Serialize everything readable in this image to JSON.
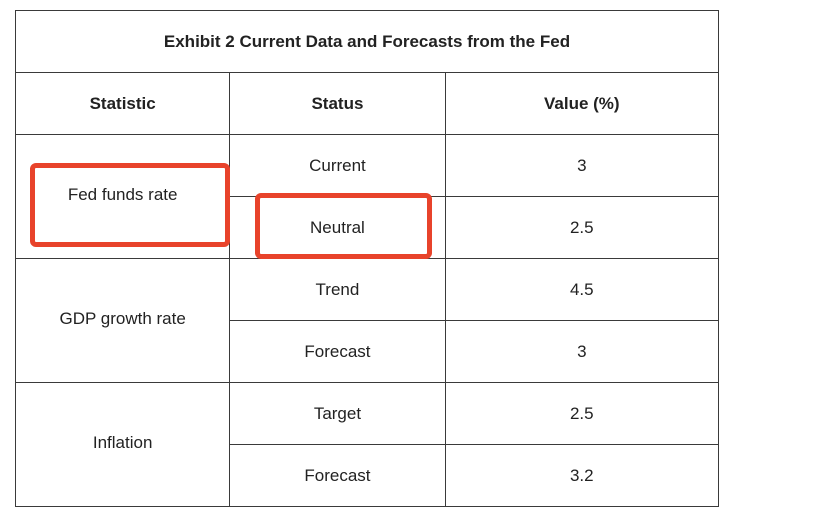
{
  "table": {
    "title": "Exhibit 2 Current Data and Forecasts from the Fed",
    "headers": [
      "Statistic",
      "Status",
      "Value (%)"
    ],
    "groups": [
      {
        "statistic": "Fed funds rate",
        "rows": [
          {
            "status": "Current",
            "value": "3"
          },
          {
            "status": "Neutral",
            "value": "2.5"
          }
        ]
      },
      {
        "statistic": "GDP growth rate",
        "rows": [
          {
            "status": "Trend",
            "value": "4.5"
          },
          {
            "status": "Forecast",
            "value": "3"
          }
        ]
      },
      {
        "statistic": "Inflation",
        "rows": [
          {
            "status": "Target",
            "value": "2.5"
          },
          {
            "status": "Forecast",
            "value": "3.2"
          }
        ]
      }
    ]
  },
  "annotations": {
    "highlight_color": "#e8432b",
    "highlighted": [
      "Fed funds rate",
      "Neutral"
    ]
  }
}
